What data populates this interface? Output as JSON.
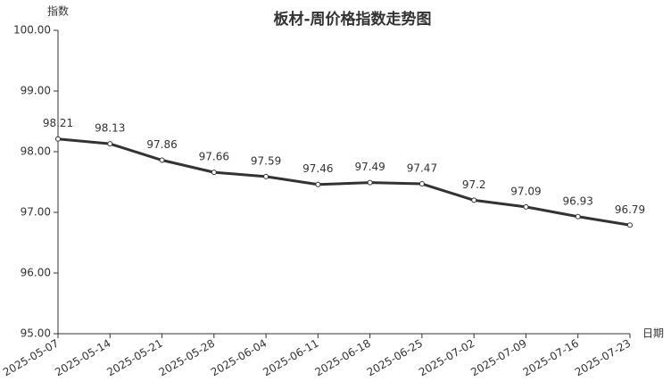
{
  "chart_data": {
    "type": "line",
    "title": "板材-周价格指数走势图",
    "y_label": "指数",
    "x_label": "日期",
    "categories": [
      "2025-05-07",
      "2025-05-14",
      "2025-05-21",
      "2025-05-28",
      "2025-06-04",
      "2025-06-11",
      "2025-06-18",
      "2025-06-25",
      "2025-07-02",
      "2025-07-09",
      "2025-07-16",
      "2025-07-23"
    ],
    "series": [
      {
        "name": "板材",
        "color": "#333333",
        "values": [
          98.21,
          98.13,
          97.86,
          97.66,
          97.59,
          97.46,
          97.49,
          97.47,
          97.2,
          97.09,
          96.93,
          96.79
        ]
      }
    ],
    "ylim": [
      95,
      100
    ],
    "yticks": [
      {
        "value": 95,
        "label": "95.00"
      },
      {
        "value": 96,
        "label": "96.00"
      },
      {
        "value": 97,
        "label": "97.00"
      },
      {
        "value": 98,
        "label": "98.00"
      },
      {
        "value": 99,
        "label": "99.00"
      },
      {
        "value": 100,
        "label": "100.00"
      }
    ]
  }
}
